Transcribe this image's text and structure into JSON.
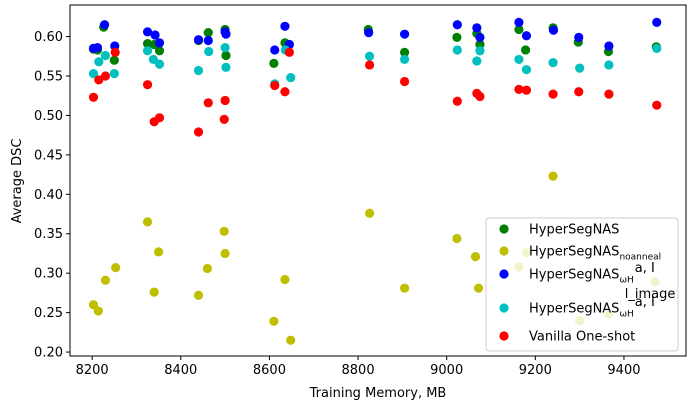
{
  "chart_data": {
    "type": "scatter",
    "title": "",
    "xlabel": "Training Memory, MB",
    "ylabel": "Average DSC",
    "xlim": [
      8150,
      9540
    ],
    "ylim": [
      0.195,
      0.64
    ],
    "xticks": [
      8200,
      8400,
      8600,
      8800,
      9000,
      9200,
      9400
    ],
    "xtick_labels": [
      "8200",
      "8400",
      "8600",
      "8800",
      "9000",
      "9200",
      "9400"
    ],
    "yticks": [
      0.2,
      0.25,
      0.3,
      0.35,
      0.4,
      0.45,
      0.5,
      0.55,
      0.6
    ],
    "ytick_labels": [
      "0.20",
      "0.25",
      "0.30",
      "0.35",
      "0.40",
      "0.45",
      "0.50",
      "0.55",
      "0.60"
    ],
    "grid": false,
    "legend_position": "lower-right",
    "series": [
      {
        "name": "HyperSegNAS",
        "legend_main": "HyperSegNAS",
        "legend_sub": "",
        "legend_sup": "",
        "color": "#008000",
        "points": [
          [
            8203,
            0.584
          ],
          [
            8212,
            0.583
          ],
          [
            8226,
            0.612
          ],
          [
            8250,
            0.57
          ],
          [
            8325,
            0.591
          ],
          [
            8340,
            0.59
          ],
          [
            8352,
            0.582
          ],
          [
            8440,
            0.595
          ],
          [
            8462,
            0.605
          ],
          [
            8500,
            0.609
          ],
          [
            8502,
            0.576
          ],
          [
            8610,
            0.566
          ],
          [
            8635,
            0.592
          ],
          [
            8823,
            0.609
          ],
          [
            8905,
            0.58
          ],
          [
            9023,
            0.599
          ],
          [
            9068,
            0.604
          ],
          [
            9075,
            0.59
          ],
          [
            9163,
            0.609
          ],
          [
            9178,
            0.583
          ],
          [
            9240,
            0.611
          ],
          [
            9297,
            0.593
          ],
          [
            9365,
            0.581
          ],
          [
            9473,
            0.587
          ]
        ]
      },
      {
        "name": "HyperSegNAS noanneal",
        "legend_main": "HyperSegNAS",
        "legend_sub": "noanneal",
        "legend_sup": "",
        "color": "#bfbf00",
        "points": [
          [
            8203,
            0.26
          ],
          [
            8214,
            0.252
          ],
          [
            8230,
            0.291
          ],
          [
            8253,
            0.307
          ],
          [
            8325,
            0.365
          ],
          [
            8340,
            0.276
          ],
          [
            8350,
            0.327
          ],
          [
            8440,
            0.272
          ],
          [
            8460,
            0.306
          ],
          [
            8498,
            0.353
          ],
          [
            8500,
            0.325
          ],
          [
            8610,
            0.239
          ],
          [
            8635,
            0.292
          ],
          [
            8648,
            0.215
          ],
          [
            8826,
            0.376
          ],
          [
            8905,
            0.281
          ],
          [
            9023,
            0.344
          ],
          [
            9065,
            0.321
          ],
          [
            9072,
            0.281
          ],
          [
            9163,
            0.308
          ],
          [
            9180,
            0.326
          ],
          [
            9240,
            0.423
          ],
          [
            9300,
            0.24
          ],
          [
            9365,
            0.248
          ],
          [
            9470,
            0.289
          ]
        ]
      },
      {
        "name": "HyperSegNAS ω_H^{a,I}",
        "legend_main": "HyperSegNAS",
        "legend_sub": "ωH",
        "legend_sup": "a, I",
        "color": "#0000ff",
        "points": [
          [
            8203,
            0.585
          ],
          [
            8212,
            0.586
          ],
          [
            8228,
            0.615
          ],
          [
            8251,
            0.588
          ],
          [
            8325,
            0.606
          ],
          [
            8342,
            0.602
          ],
          [
            8352,
            0.592
          ],
          [
            8440,
            0.596
          ],
          [
            8462,
            0.595
          ],
          [
            8500,
            0.606
          ],
          [
            8502,
            0.603
          ],
          [
            8612,
            0.583
          ],
          [
            8635,
            0.613
          ],
          [
            8645,
            0.59
          ],
          [
            8824,
            0.605
          ],
          [
            8905,
            0.603
          ],
          [
            9024,
            0.615
          ],
          [
            9068,
            0.611
          ],
          [
            9075,
            0.599
          ],
          [
            9163,
            0.618
          ],
          [
            9180,
            0.601
          ],
          [
            9241,
            0.608
          ],
          [
            9298,
            0.599
          ],
          [
            9366,
            0.588
          ],
          [
            9474,
            0.618
          ]
        ]
      },
      {
        "name": "HyperSegNAS ω_H^{a,I} l_image",
        "legend_main": "HyperSegNAS",
        "legend_sub": "ωH",
        "legend_sup": "a, I",
        "legend_sup2": "l_image",
        "color": "#00bfbf",
        "points": [
          [
            8203,
            0.553
          ],
          [
            8215,
            0.568
          ],
          [
            8230,
            0.576
          ],
          [
            8250,
            0.553
          ],
          [
            8325,
            0.582
          ],
          [
            8338,
            0.571
          ],
          [
            8352,
            0.565
          ],
          [
            8440,
            0.557
          ],
          [
            8463,
            0.581
          ],
          [
            8500,
            0.586
          ],
          [
            8502,
            0.561
          ],
          [
            8612,
            0.54
          ],
          [
            8636,
            0.583
          ],
          [
            8648,
            0.548
          ],
          [
            8826,
            0.575
          ],
          [
            8905,
            0.571
          ],
          [
            9024,
            0.583
          ],
          [
            9068,
            0.569
          ],
          [
            9075,
            0.582
          ],
          [
            9163,
            0.571
          ],
          [
            9180,
            0.558
          ],
          [
            9240,
            0.567
          ],
          [
            9300,
            0.56
          ],
          [
            9366,
            0.564
          ],
          [
            9474,
            0.585
          ]
        ]
      },
      {
        "name": "Vanilla One-shot",
        "legend_main": "Vanilla One-shot",
        "legend_sub": "",
        "legend_sup": "",
        "color": "#ff0000",
        "points": [
          [
            8203,
            0.523
          ],
          [
            8215,
            0.545
          ],
          [
            8230,
            0.55
          ],
          [
            8252,
            0.58
          ],
          [
            8325,
            0.539
          ],
          [
            8340,
            0.492
          ],
          [
            8352,
            0.497
          ],
          [
            8440,
            0.479
          ],
          [
            8462,
            0.516
          ],
          [
            8498,
            0.495
          ],
          [
            8500,
            0.519
          ],
          [
            8612,
            0.538
          ],
          [
            8635,
            0.53
          ],
          [
            8645,
            0.58
          ],
          [
            8826,
            0.564
          ],
          [
            8905,
            0.543
          ],
          [
            9024,
            0.518
          ],
          [
            9068,
            0.528
          ],
          [
            9075,
            0.524
          ],
          [
            9163,
            0.533
          ],
          [
            9180,
            0.532
          ],
          [
            9240,
            0.527
          ],
          [
            9298,
            0.53
          ],
          [
            9366,
            0.527
          ],
          [
            9474,
            0.513
          ]
        ]
      }
    ]
  }
}
